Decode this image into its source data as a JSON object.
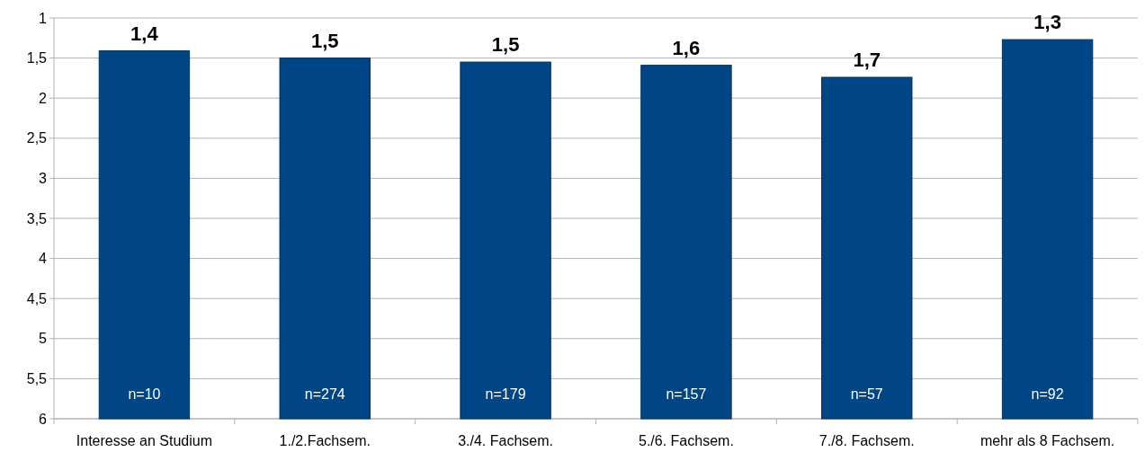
{
  "chart_data": {
    "type": "bar",
    "categories": [
      "Interesse an Studium",
      "1./2.Fachsem.",
      "3./4. Fachsem.",
      "5./6. Fachsem.",
      "7./8. Fachsem.",
      "mehr als 8 Fachsem."
    ],
    "base": [
      6,
      6,
      6,
      6,
      6,
      6
    ],
    "values": [
      -4.59,
      -4.5,
      -4.45,
      -4.41,
      -4.26,
      -4.73
    ],
    "color": "#004586",
    "ylim": [
      6,
      1
    ],
    "yticks": [
      {
        "value": 1,
        "label": "1"
      },
      {
        "value": 1.5,
        "label": "1,5"
      },
      {
        "value": 2,
        "label": "2"
      },
      {
        "value": 2.5,
        "label": "2,5"
      },
      {
        "value": 3,
        "label": "3"
      },
      {
        "value": 3.5,
        "label": "3,5"
      },
      {
        "value": 4,
        "label": "4"
      },
      {
        "value": 4.5,
        "label": "4,5"
      },
      {
        "value": 5,
        "label": "5"
      },
      {
        "value": 5.5,
        "label": "5,5"
      },
      {
        "value": 6,
        "label": "6"
      }
    ],
    "grid": "y",
    "annotations": [
      {
        "text": "1,4",
        "x": "Interesse an Studium",
        "y": 1.41
      },
      {
        "text": "1,5",
        "x": "1./2.Fachsem.",
        "y": 1.5
      },
      {
        "text": "1,5",
        "x": "3./4. Fachsem.",
        "y": 1.55
      },
      {
        "text": "1,6",
        "x": "5./6. Fachsem.",
        "y": 1.59
      },
      {
        "text": "1,7",
        "x": "7./8. Fachsem.",
        "y": 1.74
      },
      {
        "text": "1,3",
        "x": "mehr als 8 Fachsem.",
        "y": 1.27
      },
      "n=10",
      "n=274",
      "n=179",
      "n=157",
      "n=57",
      "n=92"
    ]
  }
}
